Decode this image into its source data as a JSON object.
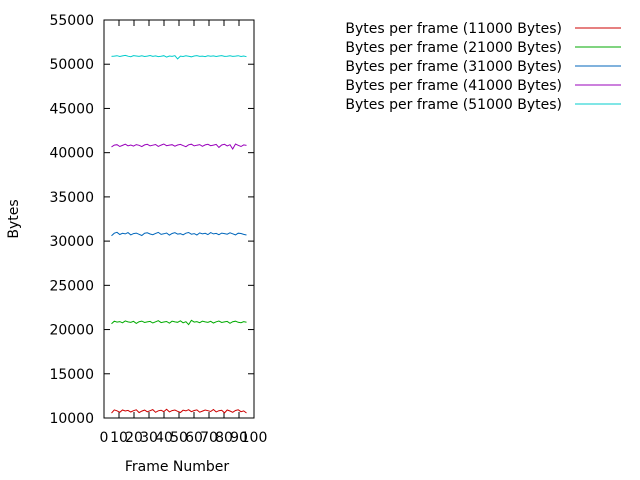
{
  "chart_data": {
    "type": "line",
    "title": "",
    "xlabel": "Frame Number",
    "ylabel": "Bytes",
    "xlim": [
      0,
      100
    ],
    "ylim": [
      10000,
      55000
    ],
    "xticks": [
      0,
      10,
      20,
      30,
      40,
      50,
      60,
      70,
      80,
      90,
      100
    ],
    "xtick_labels": [
      "0",
      "10",
      "20",
      "30",
      "40",
      "50",
      "60",
      "70",
      "80",
      "90",
      "100"
    ],
    "yticks": [
      10000,
      15000,
      20000,
      25000,
      30000,
      35000,
      40000,
      45000,
      50000,
      55000
    ],
    "ytick_labels": [
      "10000",
      "15000",
      "20000",
      "25000",
      "30000",
      "35000",
      "40000",
      "45000",
      "50000",
      "55000"
    ],
    "grid": false,
    "legend_position": "outside-top-right",
    "x_range": [
      5,
      95
    ],
    "series": [
      {
        "name": "Bytes per frame (11000 Bytes)",
        "color": "#cc0000",
        "base": 10800,
        "values": [
          10550,
          10920,
          10810,
          10640,
          10900,
          10790,
          10860,
          10680,
          10820,
          10930,
          10610,
          10780,
          10890,
          10700,
          10830,
          10950,
          10650,
          10810,
          10870,
          10720,
          10980,
          10690,
          10840,
          10910,
          10760,
          10620,
          10880,
          10800,
          10940,
          10710,
          10850,
          10920,
          10660,
          10780,
          10900,
          10830,
          10740,
          10960,
          10690,
          10820,
          10870,
          10580,
          10910,
          10790,
          10640,
          10850,
          10930,
          10710,
          10800,
          10560
        ]
      },
      {
        "name": "Bytes per frame (21000 Bytes)",
        "color": "#00aa00",
        "base": 20850,
        "values": [
          20650,
          20950,
          20840,
          20900,
          20760,
          20980,
          20870,
          20810,
          20930,
          20700,
          20890,
          20960,
          20800,
          20860,
          20920,
          20740,
          20880,
          21000,
          20790,
          20850,
          20910,
          20720,
          20940,
          20870,
          20820,
          20990,
          20760,
          20890,
          20560,
          21050,
          20840,
          20900,
          20780,
          20950,
          20860,
          20810,
          20930,
          20740,
          20880,
          20970,
          20800,
          20860,
          20920,
          20710,
          20890,
          20950,
          20820,
          20780,
          20900,
          20830
        ]
      },
      {
        "name": "Bytes per frame (31000 Bytes)",
        "color": "#0066bb",
        "base": 30800,
        "values": [
          30600,
          30900,
          31000,
          30750,
          30880,
          30820,
          30960,
          30700,
          30850,
          30910,
          30770,
          30630,
          30890,
          30940,
          30800,
          30720,
          30870,
          30980,
          30760,
          30830,
          30920,
          30680,
          30860,
          30950,
          30790,
          30840,
          30710,
          30900,
          30970,
          30780,
          30850,
          30690,
          30930,
          30820,
          30880,
          30740,
          30960,
          30810,
          30870,
          30720,
          30910,
          30850,
          30780,
          30940,
          30830,
          30700,
          30900,
          30860,
          30760,
          30690
        ]
      },
      {
        "name": "Bytes per frame (41000 Bytes)",
        "color": "#9900bb",
        "base": 40800,
        "values": [
          40650,
          40850,
          40900,
          40700,
          40820,
          40960,
          40780,
          40870,
          40740,
          40910,
          40830,
          40690,
          40880,
          40950,
          40760,
          40840,
          40920,
          40710,
          40860,
          40980,
          40790,
          40850,
          40900,
          40730,
          40870,
          40940,
          40800,
          40680,
          40890,
          40960,
          40770,
          40840,
          40910,
          40720,
          40880,
          40950,
          40790,
          40860,
          40930,
          40600,
          40870,
          40950,
          40760,
          40900,
          40420,
          40980,
          40830,
          40700,
          40880,
          40820
        ]
      },
      {
        "name": "Bytes per frame (51000 Bytes)",
        "color": "#00cccc",
        "base": 50900,
        "values": [
          50880,
          50920,
          50960,
          50870,
          50940,
          51000,
          50910,
          50850,
          50980,
          50930,
          50890,
          50950,
          50870,
          50920,
          50990,
          50880,
          50940,
          50860,
          50910,
          50960,
          50800,
          50930,
          50890,
          50960,
          50600,
          50920,
          50870,
          50950,
          50900,
          50840,
          50930,
          50970,
          50880,
          50920,
          50860,
          50950,
          50900,
          50940,
          50870,
          50930,
          50980,
          50890,
          50910,
          50950,
          50880,
          50920,
          50960,
          50870,
          50930,
          50850
        ]
      }
    ]
  }
}
